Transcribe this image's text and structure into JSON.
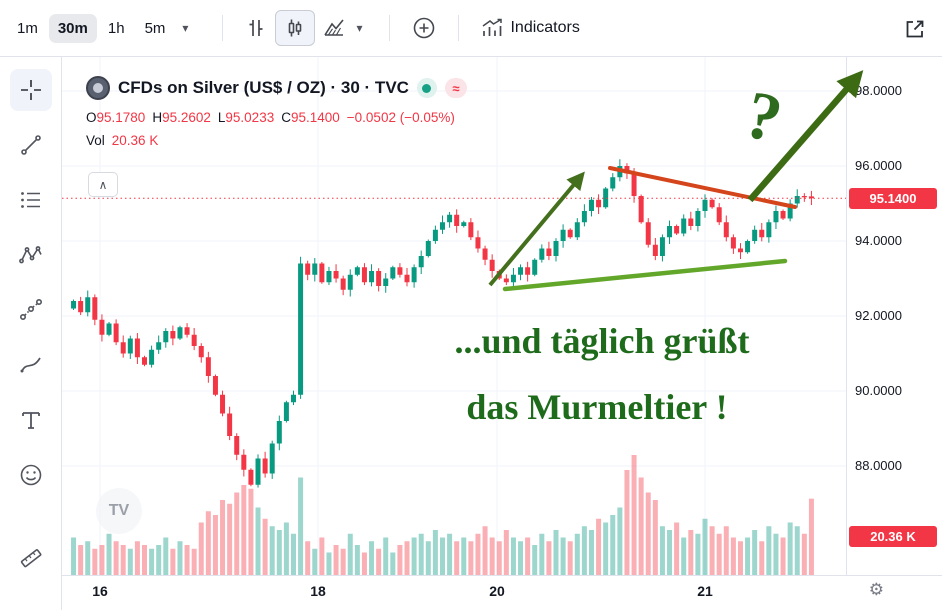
{
  "toolbar": {
    "timeframes": [
      {
        "label": "1m",
        "active": false
      },
      {
        "label": "30m",
        "active": true
      },
      {
        "label": "1h",
        "active": false
      },
      {
        "label": "5m",
        "active": false
      }
    ],
    "indicators_label": "Indicators"
  },
  "icons": {
    "chevron_down": "▾",
    "gear": "⚙",
    "collapse": "∧",
    "watermark_glyph": "TV",
    "approx_badge": "≈"
  },
  "legend": {
    "title": "CFDs on Silver (US$ / OZ) · 30 · TVC",
    "ohlc": {
      "o_label": "O",
      "o": "95.1780",
      "h_label": "H",
      "h": "95.2602",
      "l_label": "L",
      "l": "95.0233",
      "c_label": "C",
      "c": "95.1400",
      "change": "−0.0502 (−0.05%)"
    },
    "vol_label": "Vol",
    "vol_value": "20.36 K"
  },
  "price_axis": {
    "labels": [
      {
        "price": 98,
        "text": "98.0000"
      },
      {
        "price": 96,
        "text": "96.0000"
      },
      {
        "price": 94,
        "text": "94.0000"
      },
      {
        "price": 92,
        "text": "92.0000"
      },
      {
        "price": 90,
        "text": "90.0000"
      },
      {
        "price": 88,
        "text": "88.0000"
      }
    ],
    "current_badge": "95.1400",
    "volume_badge": "20.36 K"
  },
  "time_axis": {
    "labels": [
      {
        "text": "16"
      },
      {
        "text": "18"
      },
      {
        "text": "20"
      },
      {
        "text": "21"
      }
    ]
  },
  "annotations": {
    "question_mark": "?",
    "line1": "...und täglich grüßt",
    "line2": "das Murmeltier !"
  },
  "colors": {
    "up": "#089981",
    "down": "#f23645",
    "vol_up": "rgba(8,153,129,0.4)",
    "vol_down": "rgba(242,54,69,0.4)",
    "accent_red": "#f23645",
    "grid": "#f0f3fa",
    "text": "#131722",
    "muted": "#787b86",
    "annotation_green_dark": "#44701d",
    "annotation_green_text": "#1e6b1b",
    "annotation_green_line": "#62a62a",
    "annotation_red_line": "#d4451c"
  },
  "chart_data": {
    "type": "candlestick+volume",
    "title": "CFDs on Silver (US$ / OZ) · 30 · TVC",
    "interval": "30m",
    "ohlc_current": {
      "open": 95.178,
      "high": 95.2602,
      "low": 95.0233,
      "close": 95.14,
      "change": -0.0502,
      "change_pct": -0.05
    },
    "current_volume_k": 20.36,
    "price_gridlines": [
      98,
      96,
      94,
      92,
      90,
      88
    ],
    "ylim": [
      85.1,
      98.9
    ],
    "x_day_labels": [
      "16",
      "18",
      "20",
      "21"
    ],
    "first_open": 92.2,
    "closes": [
      92.4,
      92.1,
      92.5,
      91.9,
      91.5,
      91.8,
      91.3,
      91.0,
      91.4,
      90.9,
      90.7,
      91.1,
      91.3,
      91.6,
      91.4,
      91.7,
      91.5,
      91.2,
      90.9,
      90.4,
      89.9,
      89.4,
      88.8,
      88.3,
      87.9,
      87.5,
      88.2,
      87.8,
      88.6,
      89.2,
      89.7,
      89.9,
      93.4,
      93.1,
      93.4,
      92.9,
      93.2,
      93.0,
      92.7,
      93.1,
      93.3,
      92.9,
      93.2,
      92.8,
      93.0,
      93.3,
      93.1,
      92.9,
      93.3,
      93.6,
      94.0,
      94.3,
      94.5,
      94.7,
      94.4,
      94.5,
      94.1,
      93.8,
      93.5,
      93.2,
      93.0,
      92.9,
      93.1,
      93.3,
      93.1,
      93.5,
      93.8,
      93.6,
      94.0,
      94.3,
      94.1,
      94.5,
      94.8,
      95.1,
      94.9,
      95.4,
      95.7,
      96.0,
      95.8,
      95.2,
      94.5,
      93.9,
      93.6,
      94.1,
      94.4,
      94.2,
      94.6,
      94.4,
      94.8,
      95.1,
      94.9,
      94.5,
      94.1,
      93.8,
      93.7,
      94.0,
      94.3,
      94.1,
      94.5,
      94.8,
      94.6,
      95.0,
      95.2,
      95.19,
      95.14
    ],
    "volumes_k": [
      10,
      8,
      9,
      7,
      8,
      11,
      9,
      8,
      7,
      9,
      8,
      7,
      8,
      10,
      7,
      9,
      8,
      7,
      14,
      17,
      16,
      20,
      19,
      22,
      24,
      23,
      18,
      15,
      13,
      12,
      14,
      11,
      26,
      9,
      7,
      10,
      6,
      8,
      7,
      11,
      8,
      6,
      9,
      7,
      10,
      6,
      8,
      9,
      10,
      11,
      9,
      12,
      10,
      11,
      9,
      10,
      9,
      11,
      13,
      10,
      9,
      12,
      10,
      9,
      10,
      8,
      11,
      9,
      12,
      10,
      9,
      11,
      13,
      12,
      15,
      14,
      16,
      18,
      28,
      32,
      26,
      22,
      20,
      13,
      12,
      14,
      10,
      12,
      11,
      15,
      13,
      11,
      13,
      10,
      9,
      10,
      12,
      9,
      13,
      11,
      10,
      14,
      13,
      11,
      20.36
    ]
  }
}
